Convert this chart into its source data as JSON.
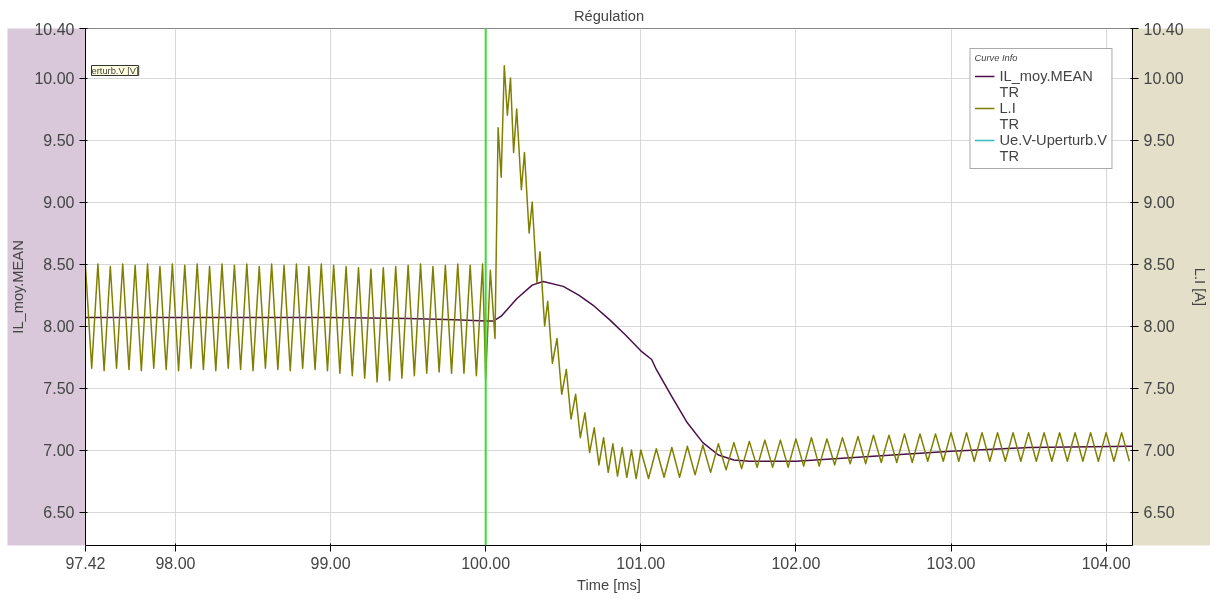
{
  "chart_data": {
    "type": "line",
    "title": "Régulation",
    "xlabel": "Time [ms]",
    "ylabel": "IL_moy.MEAN",
    "y2label": "L.I [A]",
    "legend_title": "Curve Info",
    "annotations": [
      "erturb.V [V]",
      "TR",
      "TR",
      "TR"
    ],
    "xlim": [
      97.42,
      104.17
    ],
    "xticks": [
      97.42,
      {
        "value": 98,
        "label": "98.00"
      },
      {
        "value": 99,
        "label": "99.00"
      },
      {
        "value": 100,
        "label": "100.00"
      },
      {
        "value": 101,
        "label": "101.00"
      },
      {
        "value": 102,
        "label": "102.00"
      },
      {
        "value": 103,
        "label": "103.00"
      },
      {
        "value": 104,
        "label": "104.00"
      }
    ],
    "ylim": [
      6.23,
      10.4
    ],
    "yticks": [
      {
        "value": 6.5,
        "label": "6.50"
      },
      {
        "value": 7,
        "label": "7.00"
      },
      {
        "value": 7.5,
        "label": "7.50"
      },
      {
        "value": 8,
        "label": "8.00"
      },
      {
        "value": 8.5,
        "label": "8.50"
      },
      {
        "value": 9,
        "label": "9.00"
      },
      {
        "value": 9.5,
        "label": "9.50"
      },
      {
        "value": 10,
        "label": "10.00"
      },
      {
        "value": 10.4,
        "label": "10.40"
      }
    ],
    "y2lim": [
      6.23,
      10.4
    ],
    "y2ticks": [
      {
        "value": 6.5,
        "label": "6.50"
      },
      {
        "value": 7,
        "label": "7.00"
      },
      {
        "value": 7.5,
        "label": "7.50"
      },
      {
        "value": 8,
        "label": "8.00"
      },
      {
        "value": 8.5,
        "label": "8.50"
      },
      {
        "value": 9,
        "label": "9.00"
      },
      {
        "value": 9.5,
        "label": "9.50"
      },
      {
        "value": 10,
        "label": "10.00"
      },
      {
        "value": 10.4,
        "label": "10.40"
      }
    ],
    "grid": true,
    "legend": "top right",
    "line_style": "solid",
    "ref_lines": [
      {
        "axis": "x",
        "value": 100,
        "color": "#33dd33"
      }
    ],
    "series": [
      {
        "name": "IL_moy.MEAN",
        "color": "#4b0f4b",
        "x": [
          97.42,
          98.0,
          98.5,
          99.0,
          99.5,
          99.8,
          100.0,
          100.05,
          100.1,
          100.2,
          100.3,
          100.37,
          100.5,
          100.6,
          100.7,
          100.8,
          100.9,
          101.0,
          101.07,
          101.1,
          101.2,
          101.3,
          101.4,
          101.5,
          101.6,
          101.7,
          102.0,
          102.5,
          103.0,
          103.5,
          104.17
        ],
        "values": [
          8.07,
          8.07,
          8.07,
          8.07,
          8.06,
          8.05,
          8.04,
          8.04,
          8.08,
          8.22,
          8.33,
          8.36,
          8.32,
          8.25,
          8.16,
          8.05,
          7.93,
          7.8,
          7.73,
          7.65,
          7.43,
          7.22,
          7.06,
          6.96,
          6.92,
          6.91,
          6.91,
          6.95,
          6.99,
          7.02,
          7.03
        ]
      },
      {
        "name": "L.I",
        "color": "#808000",
        "x": [
          97.42,
          97.46,
          97.5,
          97.54,
          97.58,
          97.62,
          97.66,
          97.7,
          97.74,
          97.78,
          97.82,
          97.86,
          97.9,
          97.94,
          97.98,
          98.02,
          98.06,
          98.1,
          98.14,
          98.18,
          98.22,
          98.26,
          98.3,
          98.34,
          98.38,
          98.42,
          98.46,
          98.5,
          98.54,
          98.58,
          98.62,
          98.66,
          98.7,
          98.74,
          98.78,
          98.82,
          98.86,
          98.9,
          98.94,
          98.98,
          99.02,
          99.06,
          99.1,
          99.14,
          99.18,
          99.22,
          99.26,
          99.3,
          99.34,
          99.38,
          99.42,
          99.46,
          99.5,
          99.54,
          99.58,
          99.62,
          99.66,
          99.7,
          99.74,
          99.78,
          99.82,
          99.86,
          99.9,
          99.94,
          99.98,
          100.0,
          100.03,
          100.06,
          100.08,
          100.1,
          100.12,
          100.14,
          100.16,
          100.18,
          100.2,
          100.23,
          100.25,
          100.28,
          100.3,
          100.33,
          100.35,
          100.38,
          100.4,
          100.43,
          100.46,
          100.49,
          100.52,
          100.55,
          100.58,
          100.61,
          100.64,
          100.67,
          100.7,
          100.73,
          100.76,
          100.79,
          100.82,
          100.85,
          100.88,
          100.91,
          100.94,
          100.97,
          101.0,
          101.05,
          101.1,
          101.15,
          101.2,
          101.25,
          101.3,
          101.35,
          101.4,
          101.45,
          101.5,
          101.55,
          101.6,
          101.65,
          101.7,
          101.75,
          101.8,
          101.85,
          101.9,
          101.95,
          102.0,
          102.05,
          102.1,
          102.15,
          102.2,
          102.25,
          102.3,
          102.35,
          102.4,
          102.45,
          102.5,
          102.55,
          102.6,
          102.65,
          102.7,
          102.75,
          102.8,
          102.85,
          102.9,
          102.95,
          103.0,
          103.05,
          103.1,
          103.15,
          103.2,
          103.25,
          103.3,
          103.35,
          103.4,
          103.45,
          103.5,
          103.55,
          103.6,
          103.65,
          103.7,
          103.75,
          103.8,
          103.85,
          103.9,
          103.95,
          104.0,
          104.05,
          104.1,
          104.15
        ],
        "values": [
          8.48,
          7.66,
          8.5,
          7.64,
          8.48,
          7.66,
          8.5,
          7.65,
          8.49,
          7.64,
          8.5,
          7.66,
          8.48,
          7.65,
          8.5,
          7.64,
          8.49,
          7.66,
          8.5,
          7.65,
          8.48,
          7.64,
          8.5,
          7.66,
          8.49,
          7.65,
          8.5,
          7.64,
          8.48,
          7.66,
          8.5,
          7.65,
          8.49,
          7.64,
          8.5,
          7.66,
          8.48,
          7.65,
          8.5,
          7.64,
          8.49,
          7.62,
          8.48,
          7.6,
          8.47,
          7.58,
          8.46,
          7.55,
          8.47,
          7.56,
          8.48,
          7.58,
          8.49,
          7.6,
          8.5,
          7.62,
          8.48,
          7.63,
          8.49,
          7.62,
          8.5,
          7.62,
          8.49,
          7.6,
          8.5,
          7.58,
          8.45,
          7.9,
          9.6,
          9.2,
          10.1,
          9.7,
          10.0,
          9.4,
          9.75,
          9.1,
          9.4,
          8.75,
          9.0,
          8.35,
          8.6,
          8.0,
          8.2,
          7.7,
          7.9,
          7.45,
          7.65,
          7.25,
          7.45,
          7.1,
          7.3,
          6.98,
          7.18,
          6.88,
          7.1,
          6.82,
          7.05,
          6.79,
          7.02,
          6.78,
          7.0,
          6.77,
          7.0,
          6.77,
          7.01,
          6.78,
          7.02,
          6.78,
          7.03,
          6.8,
          7.04,
          6.82,
          7.05,
          6.84,
          7.06,
          6.85,
          7.07,
          6.86,
          7.08,
          6.86,
          7.08,
          6.86,
          7.09,
          6.87,
          7.1,
          6.87,
          7.09,
          6.88,
          7.1,
          6.89,
          7.11,
          6.89,
          7.12,
          6.9,
          7.12,
          6.9,
          7.13,
          6.9,
          7.13,
          6.91,
          7.13,
          6.91,
          7.14,
          6.91,
          7.14,
          6.91,
          7.14,
          6.91,
          7.14,
          6.91,
          7.14,
          6.91,
          7.14,
          6.91,
          7.14,
          6.91,
          7.14,
          6.91,
          7.14,
          6.91,
          7.14,
          6.91,
          7.14,
          6.91,
          7.14,
          6.91
        ]
      },
      {
        "name": "Ue.V-Uperturb.V",
        "color": "#33bbbb"
      }
    ]
  }
}
